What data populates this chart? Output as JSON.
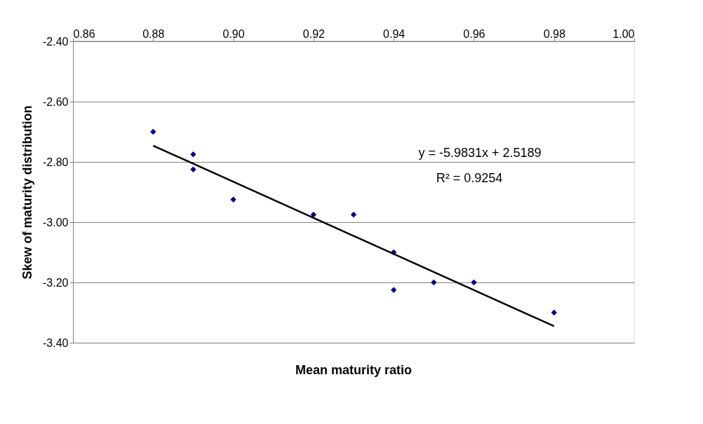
{
  "chart_data": {
    "type": "scatter",
    "xlabel": "Mean maturity ratio",
    "ylabel": "Skew of maturity distribution",
    "xlim": [
      0.86,
      1.0
    ],
    "ylim": [
      -3.4,
      -2.4
    ],
    "xticks": [
      {
        "value": 0.86,
        "label": "0.86"
      },
      {
        "value": 0.88,
        "label": "0.88"
      },
      {
        "value": 0.9,
        "label": "0.90"
      },
      {
        "value": 0.92,
        "label": "0.92"
      },
      {
        "value": 0.94,
        "label": "0.94"
      },
      {
        "value": 0.96,
        "label": "0.96"
      },
      {
        "value": 0.98,
        "label": "0.98"
      },
      {
        "value": 1.0,
        "label": "1.00"
      }
    ],
    "yticks": [
      {
        "value": -3.4,
        "label": "-3.40"
      },
      {
        "value": -3.2,
        "label": "-3.20"
      },
      {
        "value": -3.0,
        "label": "-3.00"
      },
      {
        "value": -2.8,
        "label": "-2.80"
      },
      {
        "value": -2.6,
        "label": "-2.60"
      },
      {
        "value": -2.4,
        "label": "-2.40"
      }
    ],
    "grid": "y",
    "series": [
      {
        "color": "#000080",
        "marker": "diamond",
        "x": [
          0.88,
          0.89,
          0.89,
          0.9,
          0.92,
          0.93,
          0.94,
          0.94,
          0.95,
          0.96,
          0.98
        ],
        "values": [
          -2.7,
          -2.775,
          -2.825,
          -2.925,
          -2.975,
          -2.975,
          -3.1,
          -3.225,
          -3.2,
          -3.2,
          -3.3
        ]
      },
      {
        "type": "line",
        "color": "#000000",
        "marker": "none",
        "line_style": "solid",
        "x": [
          0.88,
          0.98
        ],
        "values": [
          -2.746,
          -3.345
        ]
      }
    ],
    "annotations": [
      "y = -5.9831x + 2.5189",
      "R² = 0.9254"
    ]
  }
}
